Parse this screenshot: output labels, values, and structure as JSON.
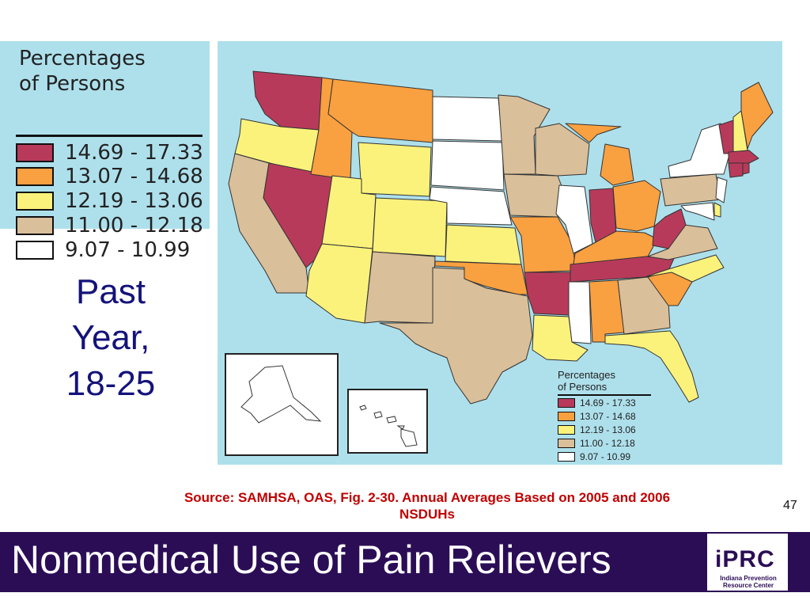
{
  "legend": {
    "title_line1": "Percentages",
    "title_line2": "of Persons",
    "items": [
      {
        "range": "14.69 - 17.33",
        "color": "#b83a5a"
      },
      {
        "range": "13.07 - 14.68",
        "color": "#f9a040"
      },
      {
        "range": "12.19 - 13.06",
        "color": "#fbf27c"
      },
      {
        "range": "11.00 - 12.18",
        "color": "#d9bf9a"
      },
      {
        "range": "9.07 - 10.99",
        "color": "#ffffff"
      }
    ]
  },
  "side_title": {
    "line1": "Past",
    "line2": "Year,",
    "line3": "18-25"
  },
  "source": {
    "line1": "Source:  SAMHSA, OAS, Fig. 2-30.    Annual Averages Based on 2005 and 2006",
    "line2": "NSDUHs"
  },
  "page_number": "47",
  "footer_title": "Nonmedical Use of Pain Relievers",
  "logo": {
    "mark": "iPRC",
    "subtitle_line1": "Indiana Prevention",
    "subtitle_line2": "Resource Center"
  },
  "map": {
    "background": "#aee0ec",
    "insets": [
      "Alaska",
      "Hawaii"
    ],
    "states": [
      {
        "name": "Washington",
        "category": 0
      },
      {
        "name": "Oregon",
        "category": 2
      },
      {
        "name": "California",
        "category": 3
      },
      {
        "name": "Nevada",
        "category": 0
      },
      {
        "name": "Idaho",
        "category": 1
      },
      {
        "name": "Montana",
        "category": 1
      },
      {
        "name": "Wyoming",
        "category": 2
      },
      {
        "name": "Utah",
        "category": 2
      },
      {
        "name": "Arizona",
        "category": 2
      },
      {
        "name": "Colorado",
        "category": 2
      },
      {
        "name": "New Mexico",
        "category": 3
      },
      {
        "name": "North Dakota",
        "category": 4
      },
      {
        "name": "South Dakota",
        "category": 4
      },
      {
        "name": "Nebraska",
        "category": 4
      },
      {
        "name": "Kansas",
        "category": 2
      },
      {
        "name": "Oklahoma",
        "category": 1
      },
      {
        "name": "Texas",
        "category": 3
      },
      {
        "name": "Minnesota",
        "category": 3
      },
      {
        "name": "Iowa",
        "category": 3
      },
      {
        "name": "Missouri",
        "category": 1
      },
      {
        "name": "Arkansas",
        "category": 0
      },
      {
        "name": "Louisiana",
        "category": 2
      },
      {
        "name": "Wisconsin",
        "category": 3
      },
      {
        "name": "Illinois",
        "category": 4
      },
      {
        "name": "Michigan",
        "category": 1
      },
      {
        "name": "Indiana",
        "category": 0
      },
      {
        "name": "Ohio",
        "category": 1
      },
      {
        "name": "Kentucky",
        "category": 1
      },
      {
        "name": "Tennessee",
        "category": 0
      },
      {
        "name": "Mississippi",
        "category": 4
      },
      {
        "name": "Alabama",
        "category": 1
      },
      {
        "name": "Georgia",
        "category": 3
      },
      {
        "name": "Florida",
        "category": 2
      },
      {
        "name": "South Carolina",
        "category": 1
      },
      {
        "name": "North Carolina",
        "category": 2
      },
      {
        "name": "Virginia",
        "category": 3
      },
      {
        "name": "West Virginia",
        "category": 0
      },
      {
        "name": "Pennsylvania",
        "category": 3
      },
      {
        "name": "New York",
        "category": 4
      },
      {
        "name": "New Jersey",
        "category": 4
      },
      {
        "name": "Delaware",
        "category": 2
      },
      {
        "name": "Maryland",
        "category": 4
      },
      {
        "name": "Vermont",
        "category": 0
      },
      {
        "name": "New Hampshire",
        "category": 2
      },
      {
        "name": "Maine",
        "category": 1
      },
      {
        "name": "Massachusetts",
        "category": 0
      },
      {
        "name": "Connecticut",
        "category": 0
      },
      {
        "name": "Rhode Island",
        "category": 0
      },
      {
        "name": "Alaska",
        "category": 4
      },
      {
        "name": "Hawaii",
        "category": 4
      }
    ]
  }
}
